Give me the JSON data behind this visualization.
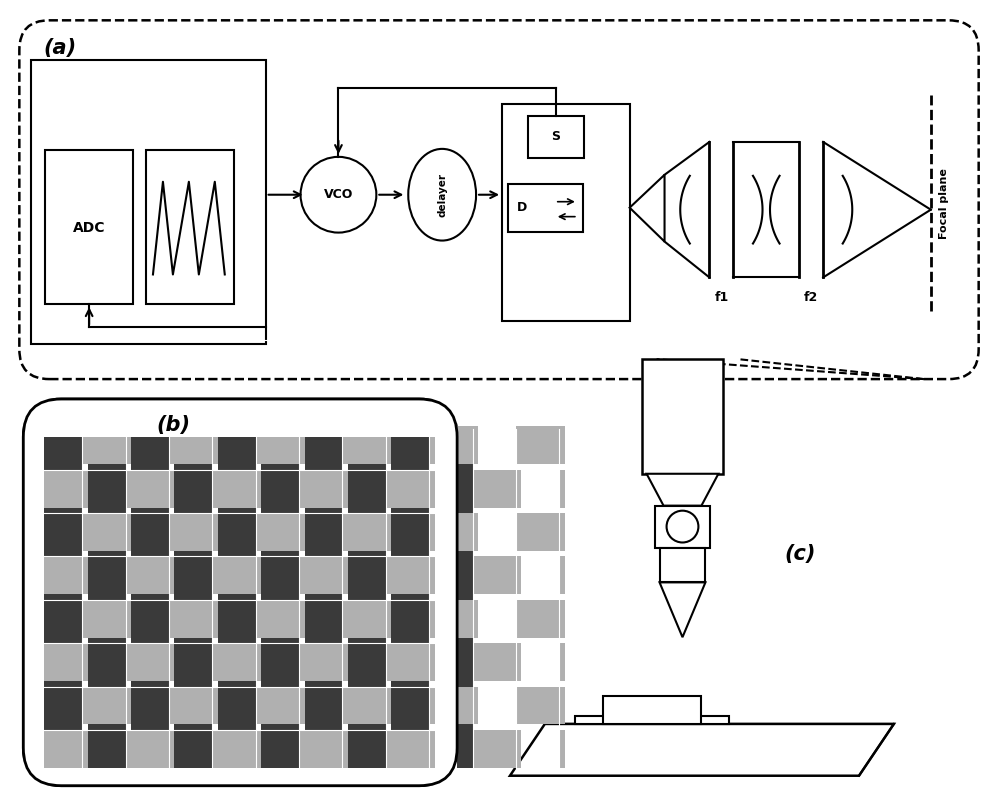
{
  "bg_color": "#ffffff",
  "line_color": "#000000",
  "gray_dark": "#3a3a3a",
  "gray_light": "#b0b0b0",
  "label_a": "(a)",
  "label_b": "(b)",
  "label_c": "(c)",
  "text_ADC": "ADC",
  "text_VCO": "VCO",
  "text_delayer": "delayer",
  "text_D": "D",
  "text_S": "S",
  "text_f1": "f1",
  "text_f2": "f2",
  "text_focal": "Focal plane"
}
